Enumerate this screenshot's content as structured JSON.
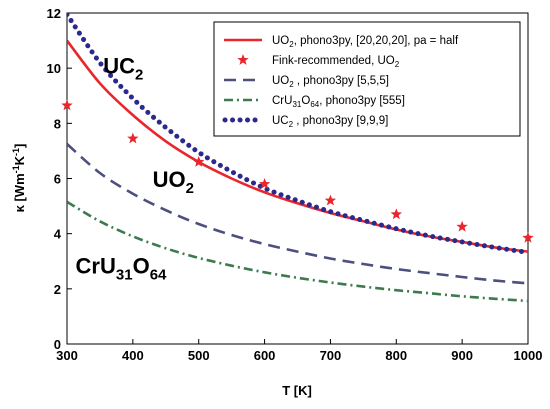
{
  "chart_data": {
    "type": "line",
    "xlabel": "T [K]",
    "ylabel": "κ [Wm⁻¹K⁻¹]",
    "ylabel_parts": {
      "base": "κ [Wm",
      "exp1": "-1",
      "mid": "K",
      "exp2": "-1",
      "end": "]"
    },
    "xlim": [
      300,
      1000
    ],
    "ylim": [
      0,
      12
    ],
    "xticks": [
      300,
      400,
      500,
      600,
      700,
      800,
      900,
      1000
    ],
    "yticks": [
      0,
      2,
      4,
      6,
      8,
      10,
      12
    ],
    "grid": false,
    "legend_position": "top-right",
    "series": [
      {
        "name": "UO2, phono3py, [20,20,20], pa = half",
        "legend_parts": {
          "a": "UO",
          "sub": "2",
          "b": ", phono3py, [20,20,20], pa = half"
        },
        "style": "solid",
        "color": "#e8262b",
        "x": [
          300,
          350,
          400,
          450,
          500,
          550,
          600,
          650,
          700,
          750,
          800,
          850,
          900,
          950,
          1000
        ],
        "y": [
          11.0,
          9.45,
          8.3,
          7.35,
          6.6,
          6.0,
          5.5,
          5.1,
          4.75,
          4.45,
          4.15,
          3.9,
          3.7,
          3.5,
          3.35
        ]
      },
      {
        "name": "Fink-recommended, UO2",
        "legend_parts": {
          "a": "Fink-recommended, UO",
          "sub": "2",
          "b": ""
        },
        "style": "markers",
        "color": "#e8262b",
        "x": [
          300,
          400,
          500,
          600,
          700,
          800,
          900,
          1000
        ],
        "y": [
          8.65,
          7.45,
          6.6,
          5.8,
          5.2,
          4.7,
          4.25,
          3.85
        ]
      },
      {
        "name": "UO2 , phono3py [5,5,5]",
        "legend_parts": {
          "a": "UO",
          "sub": "2",
          "b": " , phono3py [5,5,5]"
        },
        "style": "dashed",
        "color": "#4c4f80",
        "x": [
          300,
          350,
          400,
          450,
          500,
          550,
          600,
          650,
          700,
          750,
          800,
          850,
          900,
          950,
          1000
        ],
        "y": [
          7.25,
          6.2,
          5.45,
          4.85,
          4.35,
          3.95,
          3.62,
          3.35,
          3.1,
          2.9,
          2.72,
          2.57,
          2.43,
          2.3,
          2.2
        ]
      },
      {
        "name": "CrU31O64, phono3py [555]",
        "legend_parts": {
          "a": "CrU",
          "sub": "31",
          "b": "O",
          "sub2": "64",
          "c": ", phono3py [555]"
        },
        "style": "dashdot",
        "color": "#3d7a4e",
        "x": [
          300,
          350,
          400,
          450,
          500,
          550,
          600,
          650,
          700,
          750,
          800,
          850,
          900,
          950,
          1000
        ],
        "y": [
          5.15,
          4.45,
          3.9,
          3.47,
          3.12,
          2.84,
          2.6,
          2.4,
          2.23,
          2.08,
          1.95,
          1.84,
          1.73,
          1.64,
          1.56
        ]
      },
      {
        "name": "UC2 , phono3py [9,9,9]",
        "legend_parts": {
          "a": "UC",
          "sub": "2",
          "b": " , phono3py [9,9,9]"
        },
        "style": "dotted",
        "color": "#2b2a8c",
        "x": [
          300,
          350,
          400,
          450,
          500,
          550,
          600,
          650,
          700,
          750,
          800,
          850,
          900,
          950,
          1000
        ],
        "y": [
          11.95,
          10.2,
          8.9,
          7.85,
          6.95,
          6.25,
          5.65,
          5.2,
          4.8,
          4.48,
          4.18,
          3.92,
          3.7,
          3.5,
          3.32
        ]
      }
    ],
    "annotations": [
      {
        "id": "uc2",
        "base": "UC",
        "sub": "2",
        "x": 355,
        "y": 9.8
      },
      {
        "id": "uo2",
        "base": "UO",
        "sub": "2",
        "x": 430,
        "y": 5.7
      },
      {
        "id": "cru31o64",
        "base": "CrU",
        "sub": "31",
        "base2": "O",
        "sub2": "64",
        "x": 313,
        "y": 2.55
      }
    ]
  }
}
